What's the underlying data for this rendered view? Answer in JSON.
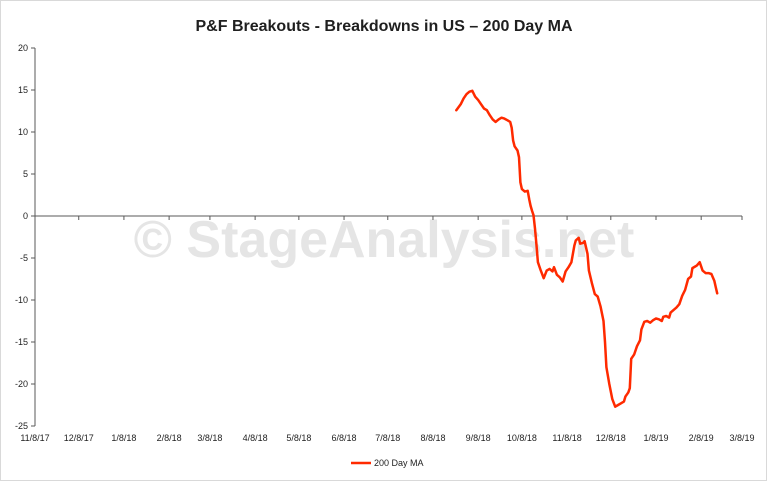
{
  "watermark": "© StageAnalysis.net",
  "colors": {
    "series": "#ff2a00",
    "axis": "#595959",
    "watermark": "#d0d0d0"
  },
  "chart_data": {
    "type": "line",
    "title": "P&F Breakouts - Breakdowns in US – 200 Day MA",
    "xlabel": "",
    "ylabel": "",
    "x_start": "2017-11-08",
    "x_end": "2019-03-08",
    "ylim": [
      -25,
      20
    ],
    "y_ticks": [
      20,
      15,
      10,
      5,
      0,
      -5,
      -10,
      -15,
      -20,
      -25
    ],
    "x_ticks": [
      {
        "date": "2017-11-08",
        "label": "11/8/17"
      },
      {
        "date": "2017-12-08",
        "label": "12/8/17"
      },
      {
        "date": "2018-01-08",
        "label": "1/8/18"
      },
      {
        "date": "2018-02-08",
        "label": "2/8/18"
      },
      {
        "date": "2018-03-08",
        "label": "3/8/18"
      },
      {
        "date": "2018-04-08",
        "label": "4/8/18"
      },
      {
        "date": "2018-05-08",
        "label": "5/8/18"
      },
      {
        "date": "2018-06-08",
        "label": "6/8/18"
      },
      {
        "date": "2018-07-08",
        "label": "7/8/18"
      },
      {
        "date": "2018-08-08",
        "label": "8/8/18"
      },
      {
        "date": "2018-09-08",
        "label": "9/8/18"
      },
      {
        "date": "2018-10-08",
        "label": "10/8/18"
      },
      {
        "date": "2018-11-08",
        "label": "11/8/18"
      },
      {
        "date": "2018-12-08",
        "label": "12/8/18"
      },
      {
        "date": "2019-01-08",
        "label": "1/8/19"
      },
      {
        "date": "2019-02-08",
        "label": "2/8/19"
      },
      {
        "date": "2019-03-08",
        "label": "3/8/19"
      }
    ],
    "grid": false,
    "legend_position": "bottom",
    "series": [
      {
        "name": "200 Day MA",
        "points": [
          [
            "2018-08-24",
            12.6
          ],
          [
            "2018-08-27",
            13.3
          ],
          [
            "2018-08-29",
            14.0
          ],
          [
            "2018-08-31",
            14.5
          ],
          [
            "2018-09-02",
            14.8
          ],
          [
            "2018-09-04",
            14.9
          ],
          [
            "2018-09-06",
            14.2
          ],
          [
            "2018-09-08",
            13.8
          ],
          [
            "2018-09-10",
            13.3
          ],
          [
            "2018-09-12",
            12.8
          ],
          [
            "2018-09-14",
            12.6
          ],
          [
            "2018-09-16",
            12.0
          ],
          [
            "2018-09-18",
            11.5
          ],
          [
            "2018-09-20",
            11.2
          ],
          [
            "2018-09-22",
            11.5
          ],
          [
            "2018-09-24",
            11.7
          ],
          [
            "2018-09-26",
            11.6
          ],
          [
            "2018-09-28",
            11.4
          ],
          [
            "2018-09-30",
            11.2
          ],
          [
            "2018-10-01",
            10.5
          ],
          [
            "2018-10-02",
            9.0
          ],
          [
            "2018-10-03",
            8.3
          ],
          [
            "2018-10-05",
            7.8
          ],
          [
            "2018-10-06",
            7.0
          ],
          [
            "2018-10-07",
            4.0
          ],
          [
            "2018-10-08",
            3.2
          ],
          [
            "2018-10-10",
            2.9
          ],
          [
            "2018-10-12",
            3.0
          ],
          [
            "2018-10-13",
            2.0
          ],
          [
            "2018-10-14",
            1.2
          ],
          [
            "2018-10-15",
            0.6
          ],
          [
            "2018-10-16",
            0.1
          ],
          [
            "2018-10-17",
            -1.5
          ],
          [
            "2018-10-18",
            -3.5
          ],
          [
            "2018-10-19",
            -5.5
          ],
          [
            "2018-10-21",
            -6.5
          ],
          [
            "2018-10-23",
            -7.4
          ],
          [
            "2018-10-25",
            -6.5
          ],
          [
            "2018-10-27",
            -6.3
          ],
          [
            "2018-10-29",
            -6.6
          ],
          [
            "2018-10-30",
            -6.1
          ],
          [
            "2018-11-01",
            -7.0
          ],
          [
            "2018-11-03",
            -7.3
          ],
          [
            "2018-11-05",
            -7.8
          ],
          [
            "2018-11-07",
            -6.6
          ],
          [
            "2018-11-09",
            -6.1
          ],
          [
            "2018-11-11",
            -5.5
          ],
          [
            "2018-11-13",
            -3.5
          ],
          [
            "2018-11-14",
            -2.9
          ],
          [
            "2018-11-16",
            -2.6
          ],
          [
            "2018-11-17",
            -3.3
          ],
          [
            "2018-11-19",
            -3.2
          ],
          [
            "2018-11-20",
            -3.0
          ],
          [
            "2018-11-22",
            -4.5
          ],
          [
            "2018-11-23",
            -6.5
          ],
          [
            "2018-11-25",
            -8.0
          ],
          [
            "2018-11-27",
            -9.3
          ],
          [
            "2018-11-29",
            -9.6
          ],
          [
            "2018-12-01",
            -10.8
          ],
          [
            "2018-12-03",
            -12.5
          ],
          [
            "2018-12-04",
            -15.0
          ],
          [
            "2018-12-05",
            -18.0
          ],
          [
            "2018-12-07",
            -20.0
          ],
          [
            "2018-12-09",
            -21.8
          ],
          [
            "2018-12-11",
            -22.7
          ],
          [
            "2018-12-13",
            -22.5
          ],
          [
            "2018-12-15",
            -22.3
          ],
          [
            "2018-12-17",
            -22.1
          ],
          [
            "2018-12-18",
            -21.5
          ],
          [
            "2018-12-20",
            -21.0
          ],
          [
            "2018-12-21",
            -20.5
          ],
          [
            "2018-12-22",
            -17.0
          ],
          [
            "2018-12-24",
            -16.5
          ],
          [
            "2018-12-26",
            -15.5
          ],
          [
            "2018-12-28",
            -14.8
          ],
          [
            "2018-12-29",
            -13.5
          ],
          [
            "2018-12-31",
            -12.6
          ],
          [
            "2019-01-02",
            -12.5
          ],
          [
            "2019-01-04",
            -12.7
          ],
          [
            "2019-01-06",
            -12.4
          ],
          [
            "2019-01-08",
            -12.2
          ],
          [
            "2019-01-10",
            -12.3
          ],
          [
            "2019-01-12",
            -12.5
          ],
          [
            "2019-01-13",
            -12.0
          ],
          [
            "2019-01-15",
            -11.9
          ],
          [
            "2019-01-17",
            -12.1
          ],
          [
            "2019-01-18",
            -11.5
          ],
          [
            "2019-01-20",
            -11.2
          ],
          [
            "2019-01-22",
            -10.9
          ],
          [
            "2019-01-24",
            -10.5
          ],
          [
            "2019-01-26",
            -9.5
          ],
          [
            "2019-01-28",
            -8.8
          ],
          [
            "2019-01-30",
            -7.5
          ],
          [
            "2019-02-01",
            -7.2
          ],
          [
            "2019-02-02",
            -6.2
          ],
          [
            "2019-02-04",
            -6.0
          ],
          [
            "2019-02-05",
            -5.9
          ],
          [
            "2019-02-07",
            -5.5
          ],
          [
            "2019-02-09",
            -6.5
          ],
          [
            "2019-02-11",
            -6.8
          ],
          [
            "2019-02-13",
            -6.8
          ],
          [
            "2019-02-15",
            -6.9
          ],
          [
            "2019-02-17",
            -7.7
          ],
          [
            "2019-02-18",
            -8.5
          ],
          [
            "2019-02-19",
            -9.2
          ]
        ]
      }
    ]
  }
}
